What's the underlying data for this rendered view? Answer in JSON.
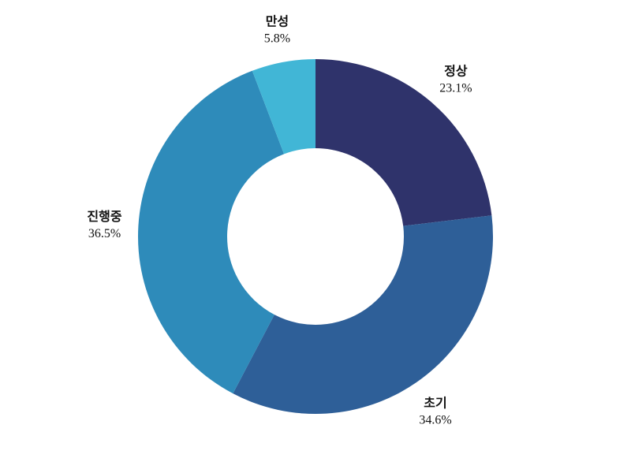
{
  "chart_data": {
    "type": "pie",
    "donut": true,
    "title": "",
    "start_angle": "top",
    "direction": "clockwise",
    "categories": [
      "정상",
      "초기",
      "진행중",
      "만성"
    ],
    "values": [
      23.1,
      34.6,
      36.5,
      5.8
    ],
    "value_labels": [
      "23.1%",
      "34.6%",
      "36.5%",
      "5.8%"
    ],
    "colors": [
      "#2f336b",
      "#2e5f98",
      "#2e8bba",
      "#41b6d6"
    ],
    "legend": "none"
  }
}
